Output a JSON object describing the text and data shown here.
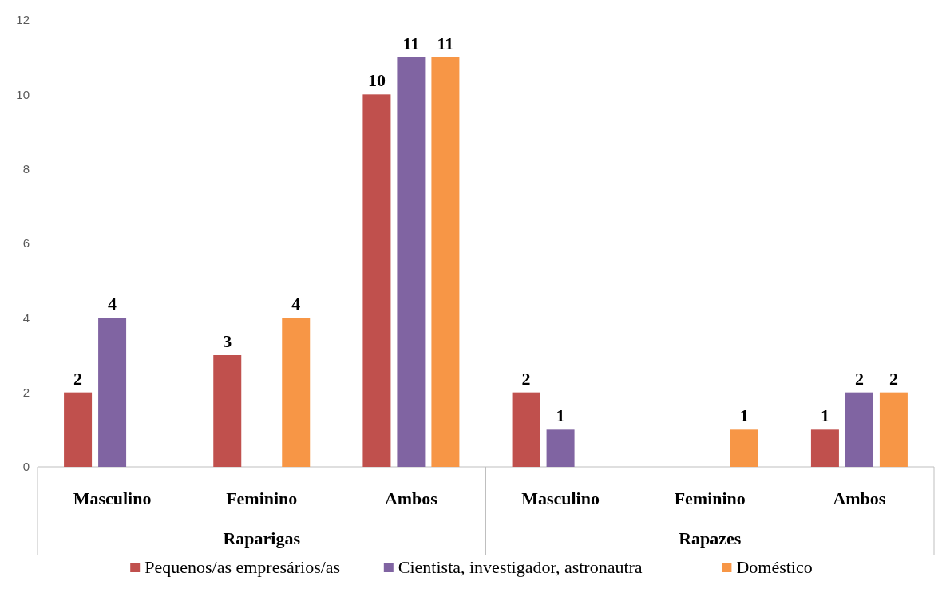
{
  "chart_data": {
    "type": "bar",
    "categories": [
      "Masculino",
      "Feminino",
      "Ambos",
      "Masculino",
      "Feminino",
      "Ambos"
    ],
    "annotations": [
      "Raparigas",
      "Rapazes"
    ],
    "series": [
      {
        "name": "Pequenos/as empresários/as",
        "color": "#c0504d",
        "values": [
          2,
          3,
          10,
          2,
          null,
          1
        ]
      },
      {
        "name": "Cientista, investigador, astronautra",
        "color": "#8064a2",
        "values": [
          4,
          null,
          11,
          1,
          null,
          2
        ]
      },
      {
        "name": "Doméstico",
        "color": "#f79646",
        "values": [
          null,
          4,
          11,
          null,
          1,
          2
        ]
      }
    ],
    "ylim": [
      0,
      12
    ],
    "yticks": [
      0,
      2,
      4,
      6,
      8,
      10,
      12
    ],
    "data_labels": true,
    "legend": "bottom"
  }
}
